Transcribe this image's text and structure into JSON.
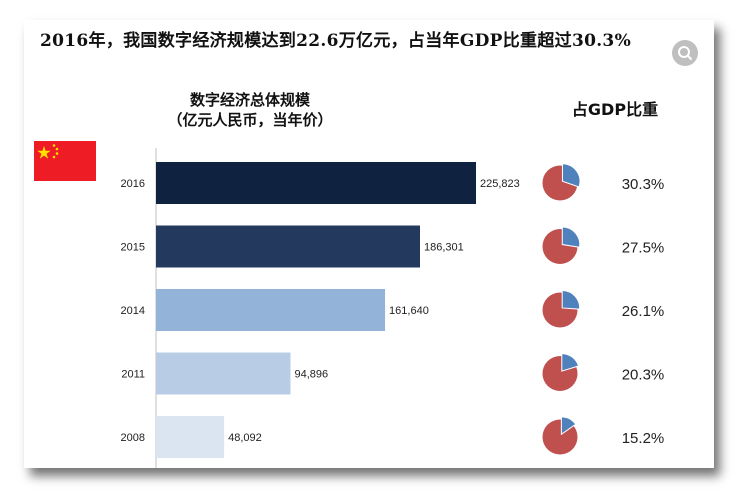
{
  "headline": "2016年，我国数字经济规模达到22.6万亿元，占当年GDP比重超过30.3%",
  "bar_title_line1": "数字经济总体规模",
  "bar_title_line2": "（亿元人民币，当年价）",
  "pie_title": "占GDP比重",
  "flag_label": "中国国旗",
  "zoom_icon": "zoom-icon",
  "chart_data": {
    "type": "bar",
    "orientation": "horizontal",
    "categories": [
      "2016",
      "2015",
      "2014",
      "2011",
      "2008"
    ],
    "values": [
      225823,
      186301,
      161640,
      94896,
      48092
    ],
    "value_labels": [
      "225,823",
      "186,301",
      "161,640",
      "94,896",
      "48,092"
    ],
    "bar_colors": [
      "#0f2341",
      "#233a5e",
      "#94b3d9",
      "#b8cce6",
      "#dbe5f2"
    ],
    "xlim": [
      0,
      300000
    ],
    "gdp_share": [
      30.3,
      27.5,
      26.1,
      20.3,
      15.2
    ],
    "gdp_share_labels": [
      "30.3%",
      "27.5%",
      "26.1%",
      "20.3%",
      "15.2%"
    ],
    "pie_colors": {
      "share": "#4f81bd",
      "rest": "#c0504d"
    }
  }
}
